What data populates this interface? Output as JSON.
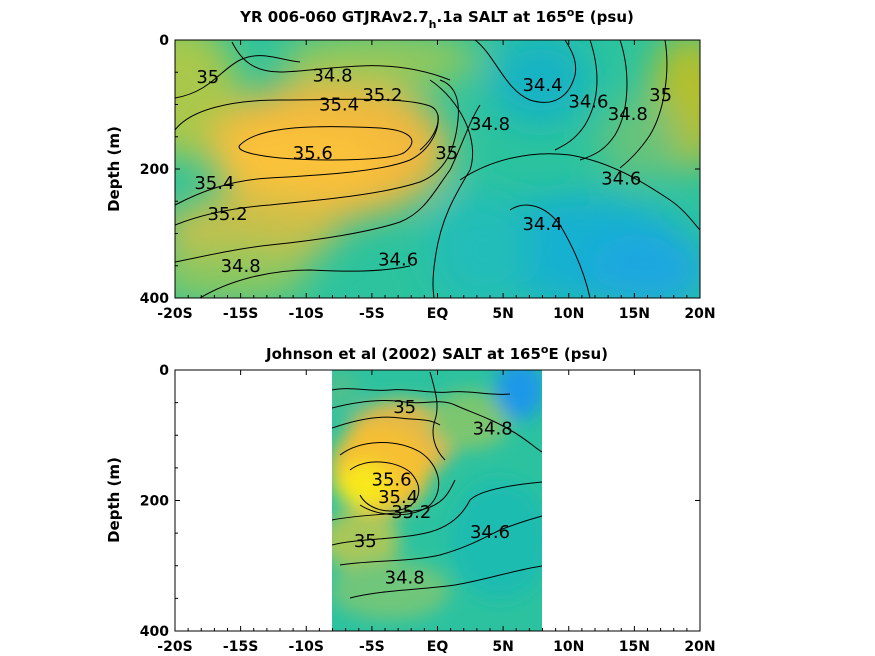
{
  "chart_data": [
    {
      "type": "heatmap",
      "title_main": "YR 006-060 GTJRAv2.7",
      "title_sub": "h",
      "title_rest": ".1a SALT at 165",
      "title_sup": "o",
      "title_end": "E (psu)",
      "ylabel": "Depth (m)",
      "xticks": [
        "-20S",
        "-15S",
        "-10S",
        "-5S",
        "EQ",
        "5N",
        "10N",
        "15N",
        "20N"
      ],
      "yticks": [
        "0",
        "200",
        "400"
      ],
      "xlim": [
        -20,
        20
      ],
      "ylim": [
        0,
        400
      ],
      "data_extent": [
        -20,
        20
      ],
      "contour_labels": [
        {
          "text": "35",
          "lat": -17.5,
          "depth": 57
        },
        {
          "text": "34.8",
          "lat": -8,
          "depth": 55
        },
        {
          "text": "35.2",
          "lat": -4.2,
          "depth": 85
        },
        {
          "text": "35.4",
          "lat": -7.5,
          "depth": 100
        },
        {
          "text": "35.6",
          "lat": -9.5,
          "depth": 175
        },
        {
          "text": "35.4",
          "lat": -17,
          "depth": 222
        },
        {
          "text": "35.2",
          "lat": -16,
          "depth": 270
        },
        {
          "text": "35",
          "lat": 0.7,
          "depth": 175
        },
        {
          "text": "34.8",
          "lat": 4,
          "depth": 130
        },
        {
          "text": "34.4",
          "lat": 8,
          "depth": 70
        },
        {
          "text": "34.6",
          "lat": 11.5,
          "depth": 95
        },
        {
          "text": "34.8",
          "lat": 14.5,
          "depth": 115
        },
        {
          "text": "35",
          "lat": 17,
          "depth": 85
        },
        {
          "text": "34.6",
          "lat": 14,
          "depth": 215
        },
        {
          "text": "34.4",
          "lat": 8,
          "depth": 285
        },
        {
          "text": "34.8",
          "lat": -15,
          "depth": 350
        },
        {
          "text": "34.6",
          "lat": -3,
          "depth": 340
        }
      ]
    },
    {
      "type": "heatmap",
      "title_main": "Johnson et al (2002) SALT at 165",
      "title_sup": "o",
      "title_end": "E (psu)",
      "ylabel": "Depth (m)",
      "xticks": [
        "-20S",
        "-15S",
        "-10S",
        "-5S",
        "EQ",
        "5N",
        "10N",
        "15N",
        "20N"
      ],
      "yticks": [
        "0",
        "200",
        "400"
      ],
      "xlim": [
        -20,
        20
      ],
      "ylim": [
        0,
        400
      ],
      "data_extent": [
        -8,
        8
      ],
      "contour_labels": [
        {
          "text": "35",
          "lat": -2.5,
          "depth": 57
        },
        {
          "text": "34.8",
          "lat": 4.2,
          "depth": 90
        },
        {
          "text": "35.6",
          "lat": -3.5,
          "depth": 168
        },
        {
          "text": "35.4",
          "lat": -3,
          "depth": 195
        },
        {
          "text": "35.2",
          "lat": -2,
          "depth": 218
        },
        {
          "text": "34.6",
          "lat": 4,
          "depth": 248
        },
        {
          "text": "35",
          "lat": -5.5,
          "depth": 262
        },
        {
          "text": "34.8",
          "lat": -2.5,
          "depth": 318
        }
      ]
    }
  ],
  "colors": {
    "fresh": "#1b9ae6",
    "mid": "#25c0a4",
    "salty": "#f6c236",
    "max": "#f8e81e"
  }
}
